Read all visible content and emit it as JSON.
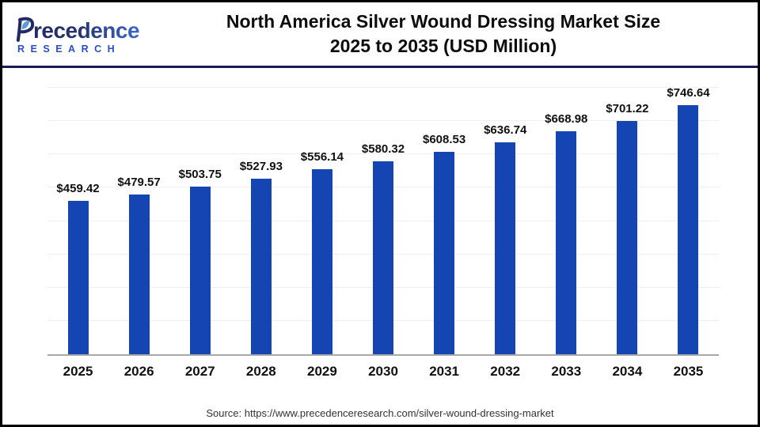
{
  "logo": {
    "brand": "Precedence",
    "brand_rest": "recedence",
    "subtitle": "RESEARCH"
  },
  "header": {
    "title_line1": "North America Silver Wound Dressing Market Size",
    "title_line2": "2025 to 2035 (USD Million)"
  },
  "chart_data": {
    "type": "bar",
    "title": "North America Silver Wound Dressing Market Size 2025 to 2035 (USD Million)",
    "categories": [
      "2025",
      "2026",
      "2027",
      "2028",
      "2029",
      "2030",
      "2031",
      "2032",
      "2033",
      "2034",
      "2035"
    ],
    "values": [
      459.42,
      479.57,
      503.75,
      527.93,
      556.14,
      580.32,
      608.53,
      636.74,
      668.98,
      701.22,
      746.64
    ],
    "value_labels": [
      "$459.42",
      "$479.57",
      "$503.75",
      "$527.93",
      "$556.14",
      "$580.32",
      "$608.53",
      "$636.74",
      "$668.98",
      "$701.22",
      "$746.64"
    ],
    "xlabel": "",
    "ylabel": "",
    "ylim": [
      0,
      800
    ],
    "grid_step": 100,
    "grid": true,
    "legend": false,
    "bar_color": "#1445b2"
  },
  "footer": {
    "source": "Source: https://www.precedenceresearch.com/silver-wound-dressing-market"
  },
  "colors": {
    "bar": "#1445b2",
    "header_divider": "#191d52",
    "axis_line": "#a8a8a8",
    "gridline": "#efefee",
    "logo_navy": "#232a63",
    "logo_blue": "#3a67cf",
    "logo_sub_blue": "#2b4fc1",
    "leaf_blue": "#5b9bd5",
    "title_text": "#0d0d0d"
  }
}
